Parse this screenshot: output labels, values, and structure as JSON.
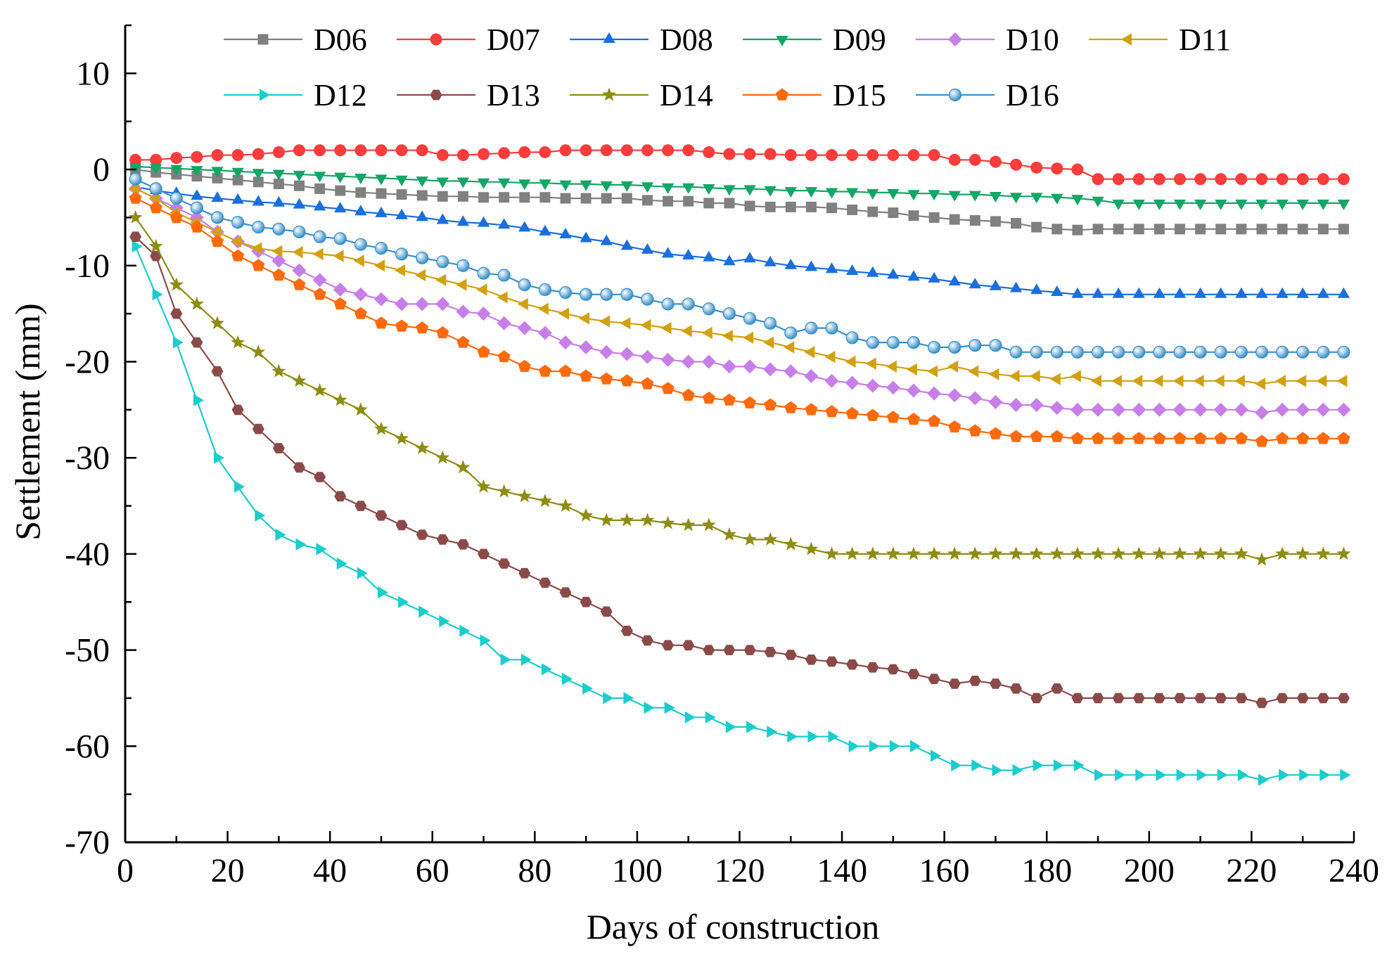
{
  "chart_data": {
    "type": "line",
    "title": "",
    "xlabel": "Days of construction",
    "ylabel": "Settlement (mm)",
    "xlim": [
      0,
      240
    ],
    "ylim": [
      -70,
      15
    ],
    "xticks": [
      "0",
      "20",
      "40",
      "60",
      "80",
      "100",
      "120",
      "140",
      "160",
      "180",
      "200",
      "220",
      "240"
    ],
    "yticks": [
      "10",
      "0",
      "-10",
      "-20",
      "-30",
      "-40",
      "-50",
      "-60",
      "-70"
    ],
    "grid": false,
    "legend_position": "top",
    "x": [
      2,
      6,
      10,
      14,
      18,
      22,
      26,
      30,
      34,
      38,
      42,
      46,
      50,
      54,
      58,
      62,
      66,
      70,
      74,
      78,
      82,
      86,
      90,
      94,
      98,
      102,
      106,
      110,
      114,
      118,
      122,
      126,
      130,
      134,
      138,
      142,
      146,
      150,
      154,
      158,
      162,
      166,
      170,
      174,
      178,
      182,
      186,
      190,
      194,
      198,
      202,
      206,
      210,
      214,
      218,
      222,
      226,
      230,
      234,
      238
    ],
    "series": [
      {
        "name": "D06",
        "color": "#808080",
        "marker": "square",
        "values": [
          0,
          -0.3,
          -0.5,
          -0.7,
          -0.9,
          -1.1,
          -1.3,
          -1.5,
          -1.7,
          -2.0,
          -2.2,
          -2.4,
          -2.5,
          -2.6,
          -2.7,
          -2.8,
          -2.8,
          -2.9,
          -2.9,
          -2.9,
          -2.9,
          -3.0,
          -3.0,
          -3.0,
          -3.0,
          -3.2,
          -3.3,
          -3.3,
          -3.5,
          -3.5,
          -3.8,
          -3.9,
          -3.9,
          -3.9,
          -4.0,
          -4.2,
          -4.4,
          -4.5,
          -4.8,
          -5.0,
          -5.2,
          -5.3,
          -5.4,
          -5.6,
          -6.0,
          -6.2,
          -6.3,
          -6.2,
          -6.2,
          -6.2,
          -6.2,
          -6.2,
          -6.2,
          -6.2,
          -6.2,
          -6.2,
          -6.2,
          -6.2,
          -6.2,
          -6.2
        ]
      },
      {
        "name": "D07",
        "color": "#f93c3c",
        "marker": "circle",
        "values": [
          1.0,
          1.0,
          1.2,
          1.3,
          1.5,
          1.5,
          1.6,
          1.8,
          2.0,
          2.0,
          2.0,
          2.0,
          2.0,
          2.0,
          2.0,
          1.5,
          1.5,
          1.6,
          1.7,
          1.8,
          1.8,
          2.0,
          2.0,
          2.0,
          2.0,
          2.0,
          2.0,
          2.0,
          1.8,
          1.6,
          1.6,
          1.6,
          1.5,
          1.5,
          1.5,
          1.5,
          1.5,
          1.5,
          1.5,
          1.5,
          1.0,
          1.0,
          0.8,
          0.5,
          0.2,
          0.1,
          0,
          -1.0,
          -1.0,
          -1.0,
          -1.0,
          -1.0,
          -1.0,
          -1.0,
          -1.0,
          -1.0,
          -1.0,
          -1.0,
          -1.0,
          -1.0
        ]
      },
      {
        "name": "D08",
        "color": "#1a6fdc",
        "marker": "triangle-up",
        "values": [
          -1.8,
          -2.2,
          -2.5,
          -2.8,
          -3.0,
          -3.2,
          -3.4,
          -3.5,
          -3.7,
          -3.9,
          -4.1,
          -4.4,
          -4.6,
          -4.8,
          -5.0,
          -5.3,
          -5.5,
          -5.6,
          -5.8,
          -6.1,
          -6.5,
          -6.8,
          -7.2,
          -7.5,
          -8.0,
          -8.4,
          -8.8,
          -9.0,
          -9.2,
          -9.6,
          -9.3,
          -9.7,
          -10.0,
          -10.2,
          -10.4,
          -10.6,
          -10.8,
          -11.0,
          -11.2,
          -11.4,
          -11.7,
          -12.0,
          -12.2,
          -12.4,
          -12.6,
          -12.8,
          -13.0,
          -13.0,
          -13.0,
          -13.0,
          -13.0,
          -13.0,
          -13.0,
          -13.0,
          -13.0,
          -13.0,
          -13.0,
          -13.0,
          -13.0,
          -13.0
        ]
      },
      {
        "name": "D09",
        "color": "#14a665",
        "marker": "triangle-down",
        "values": [
          0.3,
          0.2,
          0.1,
          0,
          -0.1,
          -0.2,
          -0.3,
          -0.4,
          -0.5,
          -0.6,
          -0.7,
          -0.8,
          -0.9,
          -1.0,
          -1.1,
          -1.2,
          -1.2,
          -1.3,
          -1.3,
          -1.4,
          -1.4,
          -1.5,
          -1.5,
          -1.6,
          -1.6,
          -1.7,
          -1.8,
          -1.8,
          -1.9,
          -2.0,
          -2.0,
          -2.1,
          -2.2,
          -2.2,
          -2.3,
          -2.3,
          -2.4,
          -2.4,
          -2.5,
          -2.5,
          -2.6,
          -2.6,
          -2.7,
          -2.8,
          -2.8,
          -2.9,
          -3.0,
          -3.2,
          -3.5,
          -3.5,
          -3.5,
          -3.5,
          -3.5,
          -3.5,
          -3.5,
          -3.5,
          -3.5,
          -3.5,
          -3.5,
          -3.5
        ]
      },
      {
        "name": "D10",
        "color": "#c77fe8",
        "marker": "diamond",
        "values": [
          -2.0,
          -3.0,
          -4.0,
          -5.0,
          -6.5,
          -7.5,
          -8.5,
          -9.5,
          -10.5,
          -11.5,
          -12.5,
          -13.0,
          -13.5,
          -14.0,
          -14.0,
          -14.0,
          -14.8,
          -15.0,
          -16.0,
          -16.5,
          -17.0,
          -18.0,
          -18.5,
          -19.0,
          -19.2,
          -19.5,
          -19.8,
          -20.0,
          -20.0,
          -20.5,
          -20.5,
          -20.8,
          -21.0,
          -21.5,
          -22.0,
          -22.2,
          -22.5,
          -22.7,
          -23.0,
          -23.3,
          -23.5,
          -23.8,
          -24.2,
          -24.5,
          -24.5,
          -24.8,
          -25.0,
          -25.0,
          -25.0,
          -25.0,
          -25.0,
          -25.0,
          -25.0,
          -25.0,
          -25.0,
          -25.3,
          -25.0,
          -25.0,
          -25.0,
          -25.0
        ]
      },
      {
        "name": "D11",
        "color": "#d2a012",
        "marker": "triangle-left",
        "values": [
          -2.0,
          -3.0,
          -4.5,
          -5.5,
          -6.5,
          -7.5,
          -8.2,
          -8.5,
          -8.6,
          -8.8,
          -9.0,
          -9.5,
          -10.0,
          -10.5,
          -11.0,
          -11.5,
          -12.0,
          -12.5,
          -13.3,
          -14.0,
          -14.5,
          -15.0,
          -15.5,
          -15.8,
          -16.0,
          -16.2,
          -16.5,
          -16.8,
          -17.0,
          -17.3,
          -17.5,
          -18.0,
          -18.5,
          -19.0,
          -19.5,
          -20.0,
          -20.2,
          -20.5,
          -20.8,
          -21.0,
          -20.5,
          -21.0,
          -21.3,
          -21.5,
          -21.5,
          -21.8,
          -21.5,
          -22.0,
          -22.0,
          -22.0,
          -22.0,
          -22.0,
          -22.0,
          -22.0,
          -22.0,
          -22.3,
          -22.0,
          -22.0,
          -22.0,
          -22.0
        ]
      },
      {
        "name": "D12",
        "color": "#1dcccc",
        "marker": "triangle-right",
        "values": [
          -8.0,
          -13.0,
          -18.0,
          -24.0,
          -30.0,
          -33.0,
          -36.0,
          -38.0,
          -39.0,
          -39.5,
          -41.0,
          -42.0,
          -44.0,
          -45.0,
          -46.0,
          -47.0,
          -48.0,
          -49.0,
          -51.0,
          -51.0,
          -52.0,
          -53.0,
          -54.0,
          -55.0,
          -55.0,
          -56.0,
          -56.0,
          -57.0,
          -57.0,
          -58.0,
          -58.0,
          -58.5,
          -59.0,
          -59.0,
          -59.0,
          -60.0,
          -60.0,
          -60.0,
          -60.0,
          -61.0,
          -62.0,
          -62.0,
          -62.5,
          -62.5,
          -62.0,
          -62.0,
          -62.0,
          -63.0,
          -63.0,
          -63.0,
          -63.0,
          -63.0,
          -63.0,
          -63.0,
          -63.0,
          -63.5,
          -63.0,
          -63.0,
          -63.0,
          -63.0
        ]
      },
      {
        "name": "D13",
        "color": "#8b4a4a",
        "marker": "hexagon",
        "values": [
          -7.0,
          -9.0,
          -15.0,
          -18.0,
          -21.0,
          -25.0,
          -27.0,
          -29.0,
          -31.0,
          -32.0,
          -34.0,
          -35.0,
          -36.0,
          -37.0,
          -38.0,
          -38.5,
          -39.0,
          -40.0,
          -41.0,
          -42.0,
          -43.0,
          -44.0,
          -45.0,
          -46.0,
          -48.0,
          -49.0,
          -49.5,
          -49.5,
          -50.0,
          -50.0,
          -50.0,
          -50.2,
          -50.5,
          -51.0,
          -51.2,
          -51.5,
          -51.8,
          -52.0,
          -52.5,
          -53.0,
          -53.5,
          -53.2,
          -53.5,
          -54.0,
          -55.0,
          -54.0,
          -55.0,
          -55.0,
          -55.0,
          -55.0,
          -55.0,
          -55.0,
          -55.0,
          -55.0,
          -55.0,
          -55.5,
          -55.0,
          -55.0,
          -55.0,
          -55.0
        ]
      },
      {
        "name": "D14",
        "color": "#8d8d14",
        "marker": "star",
        "values": [
          -5.0,
          -8.0,
          -12.0,
          -14.0,
          -16.0,
          -18.0,
          -19.0,
          -21.0,
          -22.0,
          -23.0,
          -24.0,
          -25.0,
          -27.0,
          -28.0,
          -29.0,
          -30.0,
          -31.0,
          -33.0,
          -33.5,
          -34.0,
          -34.5,
          -35.0,
          -36.0,
          -36.5,
          -36.5,
          -36.5,
          -36.8,
          -37.0,
          -37.0,
          -38.0,
          -38.5,
          -38.5,
          -39.0,
          -39.5,
          -40.0,
          -40.0,
          -40.0,
          -40.0,
          -40.0,
          -40.0,
          -40.0,
          -40.0,
          -40.0,
          -40.0,
          -40.0,
          -40.0,
          -40.0,
          -40.0,
          -40.0,
          -40.0,
          -40.0,
          -40.0,
          -40.0,
          -40.0,
          -40.0,
          -40.6,
          -40.0,
          -40.0,
          -40.0,
          -40.0
        ]
      },
      {
        "name": "D15",
        "color": "#ff6a0d",
        "marker": "pentagon",
        "values": [
          -3.0,
          -4.0,
          -5.0,
          -6.0,
          -7.5,
          -9.0,
          -10.0,
          -11.0,
          -12.0,
          -13.0,
          -14.0,
          -15.0,
          -16.0,
          -16.3,
          -16.5,
          -17.0,
          -18.0,
          -19.0,
          -19.5,
          -20.5,
          -21.0,
          -21.0,
          -21.5,
          -21.8,
          -22.0,
          -22.3,
          -22.8,
          -23.5,
          -23.8,
          -24.0,
          -24.3,
          -24.5,
          -24.8,
          -25.0,
          -25.2,
          -25.4,
          -25.6,
          -25.8,
          -26.0,
          -26.2,
          -26.8,
          -27.2,
          -27.5,
          -27.8,
          -27.8,
          -27.8,
          -28.0,
          -28.0,
          -28.0,
          -28.0,
          -28.0,
          -28.0,
          -28.0,
          -28.0,
          -28.0,
          -28.3,
          -28.0,
          -28.0,
          -28.0,
          -28.0
        ]
      },
      {
        "name": "D16",
        "color": "#3a8fc8",
        "marker": "sphere",
        "values": [
          -1.0,
          -2.0,
          -3.0,
          -4.0,
          -5.0,
          -5.5,
          -6.0,
          -6.2,
          -6.5,
          -7.0,
          -7.2,
          -7.8,
          -8.2,
          -8.8,
          -9.2,
          -9.6,
          -10.0,
          -10.8,
          -11.0,
          -12.0,
          -12.5,
          -12.8,
          -13.0,
          -13.0,
          -13.0,
          -13.5,
          -14.0,
          -14.0,
          -14.5,
          -15.0,
          -15.5,
          -16.0,
          -17.0,
          -16.5,
          -16.5,
          -17.5,
          -18.0,
          -18.0,
          -18.0,
          -18.5,
          -18.5,
          -18.3,
          -18.3,
          -19.0,
          -19.0,
          -19.0,
          -19.0,
          -19.0,
          -19.0,
          -19.0,
          -19.0,
          -19.0,
          -19.0,
          -19.0,
          -19.0,
          -19.0,
          -19.0,
          -19.0,
          -19.0,
          -19.0
        ]
      }
    ]
  }
}
